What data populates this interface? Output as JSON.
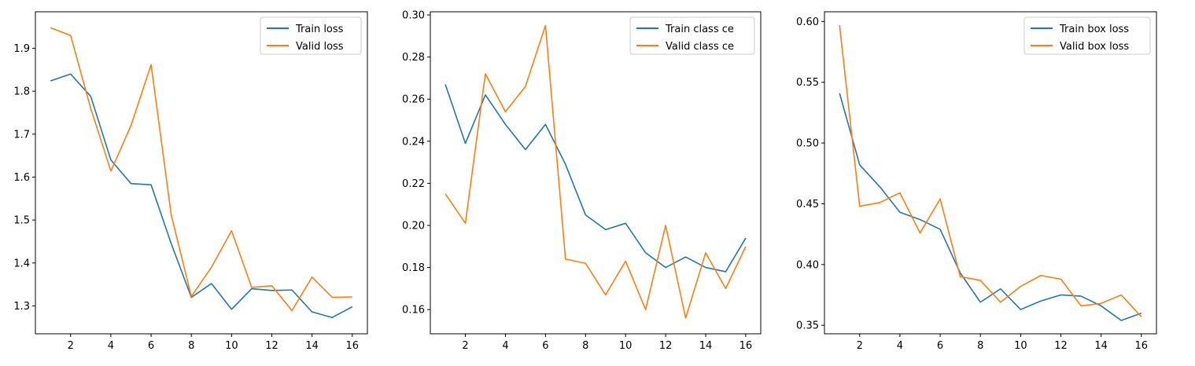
{
  "chart_data": [
    {
      "type": "line",
      "x": [
        1,
        2,
        3,
        4,
        5,
        6,
        7,
        8,
        9,
        10,
        11,
        12,
        13,
        14,
        15,
        16
      ],
      "xlim": [
        0.25,
        16.75
      ],
      "ylim": [
        1.235,
        1.985
      ],
      "xticks": [
        2,
        4,
        6,
        8,
        10,
        12,
        14,
        16
      ],
      "yticks": [
        1.3,
        1.4,
        1.5,
        1.6,
        1.7,
        1.8,
        1.9
      ],
      "ytick_decimals": 1,
      "legend_position": "top-right",
      "grid": false,
      "series": [
        {
          "name": "Train loss",
          "color": "#1f77b4",
          "values": [
            1.824,
            1.84,
            1.788,
            1.64,
            1.585,
            1.582,
            1.445,
            1.32,
            1.352,
            1.292,
            1.34,
            1.336,
            1.337,
            1.286,
            1.273,
            1.298
          ]
        },
        {
          "name": "Valid loss",
          "color": "#ff7f0e",
          "values": [
            1.948,
            1.93,
            1.76,
            1.614,
            1.72,
            1.862,
            1.512,
            1.322,
            1.39,
            1.475,
            1.343,
            1.347,
            1.289,
            1.367,
            1.32,
            1.321
          ]
        }
      ]
    },
    {
      "type": "line",
      "x": [
        1,
        2,
        3,
        4,
        5,
        6,
        7,
        8,
        9,
        10,
        11,
        12,
        13,
        14,
        15,
        16
      ],
      "xlim": [
        0.25,
        16.75
      ],
      "ylim": [
        0.1485,
        0.3015
      ],
      "xticks": [
        2,
        4,
        6,
        8,
        10,
        12,
        14,
        16
      ],
      "yticks": [
        0.16,
        0.18,
        0.2,
        0.22,
        0.24,
        0.26,
        0.28,
        0.3
      ],
      "ytick_decimals": 2,
      "legend_position": "top-right",
      "grid": false,
      "series": [
        {
          "name": "Train class ce",
          "color": "#1f77b4",
          "values": [
            0.267,
            0.239,
            0.262,
            0.248,
            0.236,
            0.248,
            0.229,
            0.205,
            0.198,
            0.201,
            0.187,
            0.18,
            0.185,
            0.18,
            0.178,
            0.194
          ]
        },
        {
          "name": "Valid class ce",
          "color": "#ff7f0e",
          "values": [
            0.215,
            0.201,
            0.272,
            0.254,
            0.266,
            0.295,
            0.184,
            0.182,
            0.167,
            0.183,
            0.16,
            0.2,
            0.156,
            0.187,
            0.17,
            0.19
          ]
        }
      ]
    },
    {
      "type": "line",
      "x": [
        1,
        2,
        3,
        4,
        5,
        6,
        7,
        8,
        9,
        10,
        11,
        12,
        13,
        14,
        15,
        16
      ],
      "xlim": [
        0.25,
        16.75
      ],
      "ylim": [
        0.343,
        0.608
      ],
      "xticks": [
        2,
        4,
        6,
        8,
        10,
        12,
        14,
        16
      ],
      "yticks": [
        0.35,
        0.4,
        0.45,
        0.5,
        0.55,
        0.6
      ],
      "ytick_decimals": 2,
      "legend_position": "top-right",
      "grid": false,
      "series": [
        {
          "name": "Train box loss",
          "color": "#1f77b4",
          "values": [
            0.541,
            0.482,
            0.464,
            0.443,
            0.437,
            0.429,
            0.393,
            0.369,
            0.38,
            0.363,
            0.37,
            0.375,
            0.374,
            0.366,
            0.354,
            0.36
          ]
        },
        {
          "name": "Valid box loss",
          "color": "#ff7f0e",
          "values": [
            0.597,
            0.448,
            0.451,
            0.459,
            0.426,
            0.454,
            0.39,
            0.387,
            0.369,
            0.382,
            0.391,
            0.388,
            0.366,
            0.368,
            0.375,
            0.357
          ]
        }
      ]
    }
  ]
}
